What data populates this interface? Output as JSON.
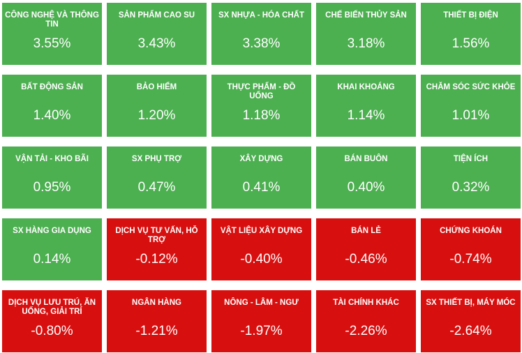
{
  "colors": {
    "up": "#4caf50",
    "down": "#d80f0f",
    "text": "#ffffff"
  },
  "sectors": [
    {
      "name": "CÔNG NGHỆ VÀ THÔNG TIN",
      "change": "3.55%",
      "trend": "up"
    },
    {
      "name": "SẢN PHẨM CAO SU",
      "change": "3.43%",
      "trend": "up"
    },
    {
      "name": "SX NHỰA - HÓA CHẤT",
      "change": "3.38%",
      "trend": "up"
    },
    {
      "name": "CHẾ BIẾN THỦY SẢN",
      "change": "3.18%",
      "trend": "up"
    },
    {
      "name": "THIẾT BỊ ĐIỆN",
      "change": "1.56%",
      "trend": "up"
    },
    {
      "name": "BẤT ĐỘNG SẢN",
      "change": "1.40%",
      "trend": "up"
    },
    {
      "name": "BẢO HIỂM",
      "change": "1.20%",
      "trend": "up"
    },
    {
      "name": "THỰC PHẨM - ĐỒ UỐNG",
      "change": "1.18%",
      "trend": "up"
    },
    {
      "name": "KHAI KHOÁNG",
      "change": "1.14%",
      "trend": "up"
    },
    {
      "name": "CHĂM SÓC SỨC KHỎE",
      "change": "1.01%",
      "trend": "up"
    },
    {
      "name": "VẬN TẢI - KHO BÃI",
      "change": "0.95%",
      "trend": "up"
    },
    {
      "name": "SX PHỤ TRỢ",
      "change": "0.47%",
      "trend": "up"
    },
    {
      "name": "XÂY DỰNG",
      "change": "0.41%",
      "trend": "up"
    },
    {
      "name": "BÁN BUÔN",
      "change": "0.40%",
      "trend": "up"
    },
    {
      "name": "TIỆN ÍCH",
      "change": "0.32%",
      "trend": "up"
    },
    {
      "name": "SX HÀNG GIA DỤNG",
      "change": "0.14%",
      "trend": "up"
    },
    {
      "name": "DỊCH VỤ TƯ VẤN, HỖ TRỢ",
      "change": "-0.12%",
      "trend": "down"
    },
    {
      "name": "VẬT LIỆU XÂY DỰNG",
      "change": "-0.40%",
      "trend": "down"
    },
    {
      "name": "BÁN LẺ",
      "change": "-0.46%",
      "trend": "down"
    },
    {
      "name": "CHỨNG KHOÁN",
      "change": "-0.74%",
      "trend": "down"
    },
    {
      "name": "DỊCH VỤ LƯU TRÚ, ĂN UỐNG, GIẢI TRÍ",
      "change": "-0.80%",
      "trend": "down"
    },
    {
      "name": "NGÂN HÀNG",
      "change": "-1.21%",
      "trend": "down"
    },
    {
      "name": "NÔNG - LÂM - NGƯ",
      "change": "-1.97%",
      "trend": "down"
    },
    {
      "name": "TÀI CHÍNH KHÁC",
      "change": "-2.26%",
      "trend": "down"
    },
    {
      "name": "SX THIẾT BỊ, MÁY MÓC",
      "change": "-2.64%",
      "trend": "down"
    }
  ]
}
